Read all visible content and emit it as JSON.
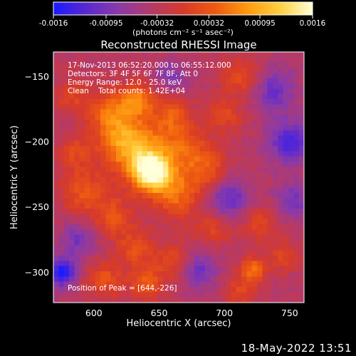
{
  "colorbar": {
    "tick_labels": [
      "-0.0016",
      "-0.00095",
      "-0.00032",
      "0.00032",
      "0.00095",
      "0.0016"
    ],
    "tick_values": [
      -0.0016,
      -0.00095,
      -0.00032,
      0.00032,
      0.00095,
      0.0016
    ],
    "range": [
      -0.0016,
      0.0016
    ],
    "units_label": "(photons cm⁻² s⁻¹ asec⁻²)",
    "colors": [
      "#1a1aff",
      "#5a28d0",
      "#8a3aa8",
      "#b43a6a",
      "#d63a2a",
      "#ee5a10",
      "#ff9a10",
      "#ffd040",
      "#ffffd8"
    ]
  },
  "chart_data": {
    "type": "heatmap",
    "title": "Reconstructed RHESSI Image",
    "xlabel": "Heliocentric X (arcsec)",
    "ylabel": "Heliocentric Y (arcsec)",
    "xlim": [
      569,
      761
    ],
    "ylim": [
      -323,
      -131
    ],
    "x_ticks": [
      600,
      650,
      700,
      750
    ],
    "x_tick_labels": [
      "600",
      "650",
      "700",
      "750"
    ],
    "y_ticks": [
      -150,
      -200,
      -250,
      -300
    ],
    "y_tick_labels": [
      "−150",
      "−200",
      "−250",
      "−300"
    ],
    "peak_position": [
      644,
      -226
    ],
    "annotations": [
      "17-Nov-2013 06:52:20.000 to 06:55:12.000",
      "Detectors: 3F 4F 5F 6F 7F 8F, Att 0",
      "Energy Range: 12.0 - 25.0 keV",
      "Clean    Total counts: 1.42E+04"
    ],
    "peak_label": "Position of Peak = [644,-226]",
    "blobs": [
      {
        "x": 645,
        "y": -224,
        "v": 0.0016,
        "s": 9
      },
      {
        "x": 640,
        "y": -212,
        "v": 0.0011,
        "s": 16
      },
      {
        "x": 622,
        "y": -198,
        "v": 0.00085,
        "s": 14
      },
      {
        "x": 612,
        "y": -176,
        "v": 0.00075,
        "s": 12
      },
      {
        "x": 634,
        "y": -168,
        "v": 0.0009,
        "s": 9
      },
      {
        "x": 660,
        "y": -180,
        "v": 0.0007,
        "s": 10
      },
      {
        "x": 672,
        "y": -205,
        "v": 0.0006,
        "s": 12
      },
      {
        "x": 664,
        "y": -240,
        "v": 0.0008,
        "s": 13
      },
      {
        "x": 688,
        "y": -222,
        "v": 0.0006,
        "s": 11
      },
      {
        "x": 700,
        "y": -180,
        "v": 0.0005,
        "s": 10
      },
      {
        "x": 714,
        "y": -150,
        "v": 0.00055,
        "s": 11
      },
      {
        "x": 592,
        "y": -238,
        "v": 0.00065,
        "s": 12
      },
      {
        "x": 615,
        "y": -258,
        "v": 0.0006,
        "s": 11
      },
      {
        "x": 632,
        "y": -282,
        "v": 0.0006,
        "s": 10
      },
      {
        "x": 640,
        "y": -308,
        "v": 0.0007,
        "s": 9
      },
      {
        "x": 608,
        "y": -305,
        "v": 0.0006,
        "s": 10
      },
      {
        "x": 662,
        "y": -292,
        "v": 0.00055,
        "s": 10
      },
      {
        "x": 692,
        "y": -264,
        "v": 0.00055,
        "s": 10
      },
      {
        "x": 726,
        "y": -262,
        "v": 0.0005,
        "s": 10
      },
      {
        "x": 722,
        "y": -298,
        "v": 0.0009,
        "s": 7
      },
      {
        "x": 712,
        "y": -315,
        "v": 0.0005,
        "s": 8
      },
      {
        "x": 745,
        "y": -288,
        "v": 0.00045,
        "s": 8
      },
      {
        "x": 582,
        "y": -165,
        "v": 0.00045,
        "s": 9
      },
      {
        "x": 585,
        "y": -208,
        "v": 0.0005,
        "s": 9
      },
      {
        "x": 750,
        "y": -200,
        "v": -0.0009,
        "s": 12
      },
      {
        "x": 738,
        "y": -160,
        "v": -0.0007,
        "s": 12
      },
      {
        "x": 702,
        "y": -245,
        "v": -0.0008,
        "s": 12
      },
      {
        "x": 680,
        "y": -298,
        "v": -0.0007,
        "s": 10
      },
      {
        "x": 575,
        "y": -300,
        "v": -0.0012,
        "s": 8
      },
      {
        "x": 588,
        "y": -275,
        "v": -0.0006,
        "s": 10
      },
      {
        "x": 660,
        "y": -150,
        "v": -0.0005,
        "s": 9
      },
      {
        "x": 753,
        "y": -245,
        "v": -0.0006,
        "s": 10
      }
    ]
  },
  "footer": {
    "date": "18-May-2022 13:51"
  }
}
